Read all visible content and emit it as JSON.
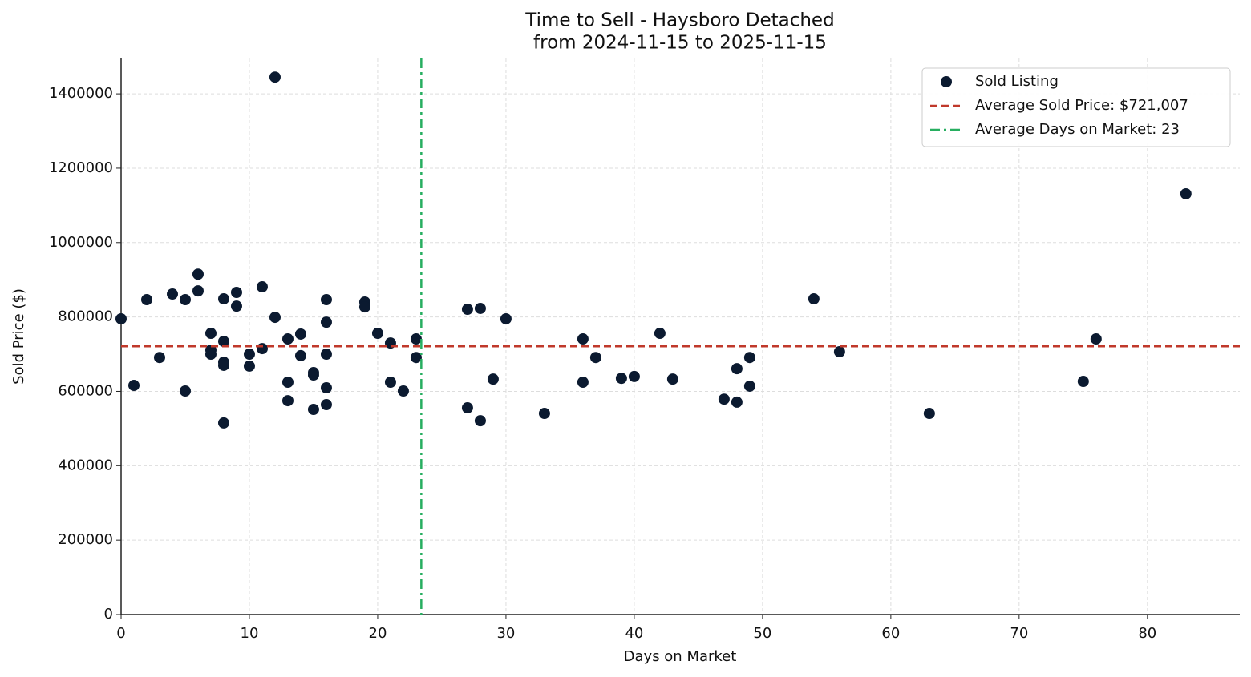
{
  "chart_data": {
    "type": "scatter",
    "title": "Time to Sell - Haysboro Detached",
    "subtitle": "from 2024-11-15 to 2025-11-15",
    "x_label": "Days on Market",
    "y_label": "Sold Price ($)",
    "xlim": [
      0,
      87.2
    ],
    "ylim": [
      0,
      1495000
    ],
    "xticks": [
      0,
      10,
      20,
      30,
      40,
      50,
      60,
      70,
      80
    ],
    "yticks": [
      0,
      200000,
      400000,
      600000,
      800000,
      1000000,
      1200000,
      1400000
    ],
    "grid": true,
    "legend": "upper right",
    "series": [
      {
        "name": "Sold Listing",
        "color": "#0b1a30",
        "x": [
          0,
          1,
          2,
          3,
          4,
          5,
          5,
          6,
          6,
          7,
          7,
          7,
          8,
          8,
          8,
          8,
          8,
          9,
          9,
          10,
          10,
          11,
          11,
          12,
          12,
          13,
          13,
          13,
          14,
          14,
          15,
          15,
          15,
          16,
          16,
          16,
          16,
          16,
          19,
          19,
          20,
          21,
          21,
          22,
          23,
          23,
          27,
          27,
          28,
          28,
          29,
          30,
          33,
          36,
          36,
          37,
          39,
          40,
          42,
          43,
          47,
          48,
          48,
          49,
          49,
          54,
          56,
          63,
          75,
          76,
          83
        ],
        "values": [
          795000,
          616000,
          846500,
          691000,
          861600,
          846500,
          601000,
          915000,
          870000,
          756000,
          711000,
          700000,
          848700,
          734500,
          678500,
          670000,
          515000,
          866000,
          829000,
          700000,
          668000,
          881000,
          715000,
          1445000,
          799000,
          741000,
          624700,
          575000,
          754000,
          696000,
          650500,
          644000,
          551400,
          846500,
          786000,
          700000,
          609600,
          564300,
          840000,
          827000,
          756000,
          730000,
          624700,
          601000,
          741000,
          691000,
          820700,
          555700,
          823000,
          521000,
          633000,
          795000,
          540600,
          741000,
          624700,
          691000,
          635000,
          640000,
          756000,
          633000,
          579000,
          661000,
          571000,
          691000,
          614000,
          848700,
          706500,
          540600,
          626800,
          741000,
          1131000
        ]
      }
    ],
    "reference_lines": [
      {
        "name": "Average Sold Price: $721,007",
        "color": "#c0392b",
        "orientation": "horizontal",
        "style": "dashed",
        "value": 721007
      },
      {
        "name": "Average Days on Market: 23",
        "color": "#27ae60",
        "orientation": "vertical",
        "style": "dashdot",
        "value": 23.4
      }
    ]
  }
}
